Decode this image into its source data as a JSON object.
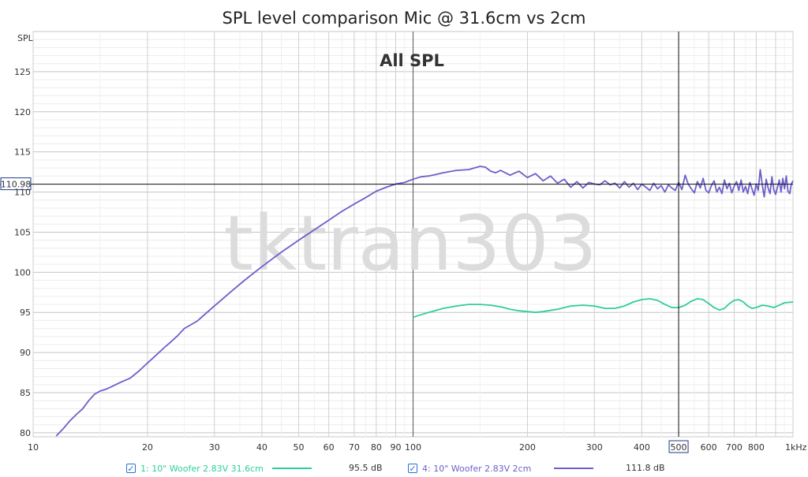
{
  "chart_data": {
    "type": "line",
    "title": "SPL level comparison Mic @ 31.6cm vs 2cm",
    "overlay_title": "All SPL",
    "watermark": "tktran303",
    "xlabel": "",
    "ylabel": "SPL",
    "x_scale": "log",
    "xlim": [
      10,
      1000
    ],
    "ylim": [
      79.5,
      130
    ],
    "x_tick_labels": [
      {
        "v": 10,
        "t": "10"
      },
      {
        "v": 20,
        "t": "20"
      },
      {
        "v": 30,
        "t": "30"
      },
      {
        "v": 40,
        "t": "40"
      },
      {
        "v": 50,
        "t": "50"
      },
      {
        "v": 60,
        "t": "60"
      },
      {
        "v": 70,
        "t": "70"
      },
      {
        "v": 80,
        "t": "80"
      },
      {
        "v": 90,
        "t": "90"
      },
      {
        "v": 100,
        "t": "100"
      },
      {
        "v": 200,
        "t": "200"
      },
      {
        "v": 300,
        "t": "300"
      },
      {
        "v": 400,
        "t": "400"
      },
      {
        "v": 500,
        "t": "500"
      },
      {
        "v": 600,
        "t": "600"
      },
      {
        "v": 700,
        "t": "700"
      },
      {
        "v": 800,
        "t": "800"
      },
      {
        "v": 1000,
        "t": "1kHz"
      }
    ],
    "y_ticks": [
      80,
      85,
      90,
      95,
      100,
      105,
      110,
      115,
      120,
      125
    ],
    "cursor": {
      "x": 500,
      "x_label": "500",
      "y": 110.98,
      "y_label": "110.98"
    },
    "grid": true,
    "legend_position": "bottom",
    "series": [
      {
        "name": "1: 10\" Woofer 2.83V 31.6cm",
        "value_label": "95.5 dB",
        "color": "#2fcf95",
        "x": [
          100,
          110,
          120,
          130,
          140,
          150,
          160,
          170,
          180,
          190,
          200,
          210,
          220,
          240,
          260,
          280,
          300,
          320,
          340,
          360,
          380,
          400,
          420,
          440,
          460,
          480,
          500,
          520,
          540,
          560,
          580,
          600,
          620,
          640,
          660,
          680,
          700,
          720,
          740,
          760,
          780,
          800,
          830,
          860,
          890,
          920,
          950,
          1000
        ],
        "y": [
          94.4,
          95.0,
          95.5,
          95.8,
          96.0,
          96.0,
          95.9,
          95.7,
          95.4,
          95.2,
          95.1,
          95.0,
          95.1,
          95.4,
          95.8,
          95.9,
          95.8,
          95.5,
          95.5,
          95.8,
          96.3,
          96.6,
          96.7,
          96.5,
          96.0,
          95.6,
          95.6,
          95.9,
          96.4,
          96.7,
          96.6,
          96.1,
          95.6,
          95.3,
          95.5,
          96.1,
          96.5,
          96.6,
          96.3,
          95.8,
          95.5,
          95.6,
          95.9,
          95.8,
          95.6,
          95.9,
          96.2,
          96.3
        ]
      },
      {
        "name": "4: 10\" Woofer 2.83V 2cm",
        "value_label": "111.8 dB",
        "color": "#6c5fcc",
        "x": [
          11.5,
          12,
          12.5,
          13,
          13.5,
          14,
          14.5,
          15,
          15.5,
          16,
          17,
          18,
          19,
          20,
          21,
          22,
          23,
          24,
          25,
          27,
          30,
          33,
          36,
          40,
          45,
          50,
          55,
          60,
          65,
          70,
          75,
          80,
          85,
          90,
          95,
          100,
          105,
          110,
          115,
          120,
          130,
          140,
          150,
          155,
          160,
          165,
          170,
          180,
          190,
          200,
          210,
          220,
          230,
          240,
          250,
          260,
          270,
          280,
          290,
          300,
          310,
          320,
          330,
          340,
          350,
          360,
          370,
          380,
          390,
          400,
          410,
          420,
          430,
          440,
          450,
          460,
          470,
          480,
          490,
          500,
          510,
          520,
          530,
          540,
          550,
          560,
          570,
          580,
          590,
          600,
          610,
          620,
          630,
          640,
          650,
          660,
          670,
          680,
          690,
          700,
          710,
          720,
          730,
          740,
          750,
          760,
          770,
          780,
          790,
          800,
          810,
          820,
          830,
          840,
          850,
          860,
          870,
          880,
          890,
          900,
          910,
          920,
          930,
          940,
          950,
          960,
          970,
          980,
          990,
          1000
        ],
        "y": [
          79.6,
          80.5,
          81.5,
          82.3,
          83.0,
          84.0,
          84.8,
          85.2,
          85.4,
          85.7,
          86.3,
          86.8,
          87.7,
          88.7,
          89.6,
          90.5,
          91.3,
          92.1,
          93.0,
          93.9,
          95.8,
          97.5,
          99.0,
          100.7,
          102.5,
          104.0,
          105.3,
          106.5,
          107.6,
          108.5,
          109.3,
          110.1,
          110.6,
          111.0,
          111.2,
          111.6,
          111.9,
          112.0,
          112.2,
          112.4,
          112.7,
          112.8,
          113.2,
          113.1,
          112.6,
          112.4,
          112.7,
          112.1,
          112.6,
          111.8,
          112.3,
          111.4,
          112.0,
          111.1,
          111.6,
          110.6,
          111.3,
          110.5,
          111.2,
          111.0,
          110.9,
          111.4,
          110.9,
          111.1,
          110.5,
          111.3,
          110.6,
          111.1,
          110.3,
          111.0,
          110.6,
          110.2,
          111.1,
          110.4,
          110.8,
          110.0,
          110.9,
          110.5,
          110.2,
          111.2,
          110.3,
          112.1,
          111.0,
          110.4,
          109.9,
          111.3,
          110.5,
          111.7,
          110.2,
          109.9,
          110.8,
          111.4,
          110.0,
          110.6,
          109.8,
          111.5,
          110.4,
          111.1,
          109.9,
          110.7,
          111.3,
          110.2,
          111.5,
          110.0,
          110.7,
          109.8,
          111.2,
          110.4,
          109.6,
          111.0,
          110.2,
          112.8,
          110.9,
          109.4,
          111.6,
          110.5,
          109.8,
          111.9,
          110.3,
          109.7,
          110.6,
          111.5,
          110.0,
          111.7,
          110.4,
          112.0,
          110.1,
          109.8,
          111.0,
          111.4
        ]
      }
    ]
  }
}
